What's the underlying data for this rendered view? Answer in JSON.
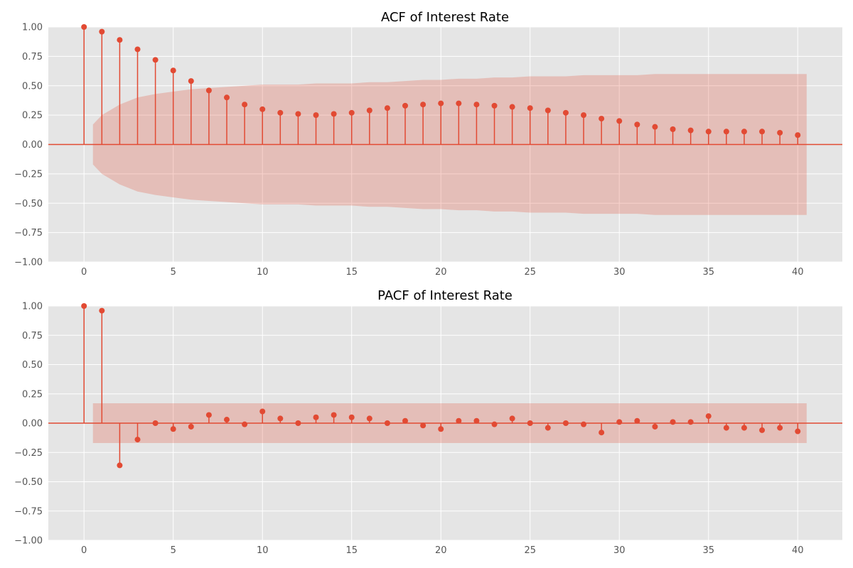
{
  "colors": {
    "background": "#e5e5e5",
    "grid": "#ffffff",
    "stem": "#e24a33",
    "confidence_band": "#e24a33"
  },
  "chart_data": [
    {
      "type": "stem",
      "title": "ACF of Interest Rate",
      "xlabel": "",
      "ylabel": "",
      "xlim": [
        -2,
        42.5
      ],
      "ylim": [
        -1,
        1
      ],
      "x_ticks": [
        0,
        5,
        10,
        15,
        20,
        25,
        30,
        35,
        40
      ],
      "y_ticks": [
        -1.0,
        -0.75,
        -0.5,
        -0.25,
        0.0,
        0.25,
        0.5,
        0.75,
        1.0
      ],
      "x_tick_labels": [
        "0",
        "5",
        "10",
        "15",
        "20",
        "25",
        "30",
        "35",
        "40"
      ],
      "y_tick_labels": [
        "−1.00",
        "−0.75",
        "−0.50",
        "−0.25",
        "0.00",
        "0.25",
        "0.50",
        "0.75",
        "1.00"
      ],
      "grid": true,
      "lags": [
        0,
        1,
        2,
        3,
        4,
        5,
        6,
        7,
        8,
        9,
        10,
        11,
        12,
        13,
        14,
        15,
        16,
        17,
        18,
        19,
        20,
        21,
        22,
        23,
        24,
        25,
        26,
        27,
        28,
        29,
        30,
        31,
        32,
        33,
        34,
        35,
        36,
        37,
        38,
        39,
        40
      ],
      "values": [
        1.0,
        0.96,
        0.89,
        0.81,
        0.72,
        0.63,
        0.54,
        0.46,
        0.4,
        0.34,
        0.3,
        0.27,
        0.26,
        0.25,
        0.26,
        0.27,
        0.29,
        0.31,
        0.33,
        0.34,
        0.35,
        0.35,
        0.34,
        0.33,
        0.32,
        0.31,
        0.29,
        0.27,
        0.25,
        0.22,
        0.2,
        0.17,
        0.15,
        0.13,
        0.12,
        0.11,
        0.11,
        0.11,
        0.11,
        0.1,
        0.08
      ],
      "confidence_band": [
        0.17,
        0.25,
        0.34,
        0.4,
        0.43,
        0.45,
        0.47,
        0.48,
        0.49,
        0.5,
        0.51,
        0.51,
        0.51,
        0.52,
        0.52,
        0.52,
        0.53,
        0.53,
        0.54,
        0.55,
        0.55,
        0.56,
        0.56,
        0.57,
        0.57,
        0.58,
        0.58,
        0.58,
        0.59,
        0.59,
        0.59,
        0.59,
        0.6,
        0.6,
        0.6,
        0.6,
        0.6,
        0.6,
        0.6,
        0.6,
        0.6
      ]
    },
    {
      "type": "stem",
      "title": "PACF of Interest Rate",
      "xlabel": "",
      "ylabel": "",
      "xlim": [
        -2,
        42.5
      ],
      "ylim": [
        -1,
        1
      ],
      "x_ticks": [
        0,
        5,
        10,
        15,
        20,
        25,
        30,
        35,
        40
      ],
      "y_ticks": [
        -1.0,
        -0.75,
        -0.5,
        -0.25,
        0.0,
        0.25,
        0.5,
        0.75,
        1.0
      ],
      "x_tick_labels": [
        "0",
        "5",
        "10",
        "15",
        "20",
        "25",
        "30",
        "35",
        "40"
      ],
      "y_tick_labels": [
        "−1.00",
        "−0.75",
        "−0.50",
        "−0.25",
        "0.00",
        "0.25",
        "0.50",
        "0.75",
        "1.00"
      ],
      "grid": true,
      "lags": [
        0,
        1,
        2,
        3,
        4,
        5,
        6,
        7,
        8,
        9,
        10,
        11,
        12,
        13,
        14,
        15,
        16,
        17,
        18,
        19,
        20,
        21,
        22,
        23,
        24,
        25,
        26,
        27,
        28,
        29,
        30,
        31,
        32,
        33,
        34,
        35,
        36,
        37,
        38,
        39,
        40
      ],
      "values": [
        1.0,
        0.96,
        -0.36,
        -0.14,
        0.0,
        -0.05,
        -0.03,
        0.07,
        0.03,
        -0.01,
        0.1,
        0.04,
        0.0,
        0.05,
        0.07,
        0.05,
        0.04,
        0.0,
        0.02,
        -0.02,
        -0.05,
        0.02,
        0.02,
        -0.01,
        0.04,
        0.0,
        -0.04,
        0.0,
        -0.01,
        -0.08,
        0.01,
        0.02,
        -0.03,
        0.01,
        0.01,
        0.06,
        -0.04,
        -0.04,
        -0.06,
        -0.04,
        -0.07
      ],
      "confidence_band": [
        0.17,
        0.17,
        0.17,
        0.17,
        0.17,
        0.17,
        0.17,
        0.17,
        0.17,
        0.17,
        0.17,
        0.17,
        0.17,
        0.17,
        0.17,
        0.17,
        0.17,
        0.17,
        0.17,
        0.17,
        0.17,
        0.17,
        0.17,
        0.17,
        0.17,
        0.17,
        0.17,
        0.17,
        0.17,
        0.17,
        0.17,
        0.17,
        0.17,
        0.17,
        0.17,
        0.17,
        0.17,
        0.17,
        0.17,
        0.17,
        0.17
      ]
    }
  ]
}
